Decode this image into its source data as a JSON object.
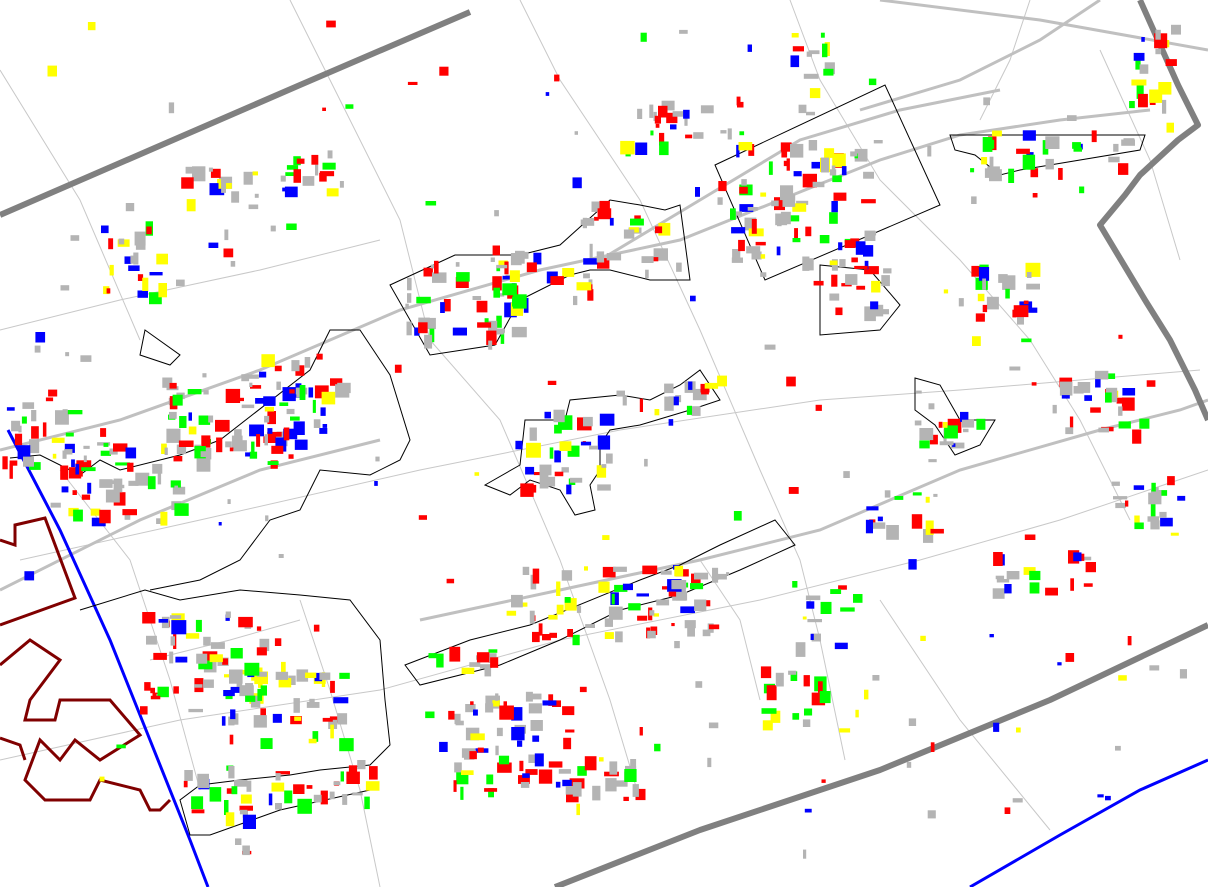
{
  "map": {
    "legend_colors": {
      "red": "#ff0000",
      "green": "#00ff00",
      "yellow": "#ffff00",
      "blue": "#0000ff",
      "gray": "#b4b4b4"
    },
    "boundary_colors": {
      "thick_border": "#808080",
      "blue_line": "#0000ff",
      "maroon_line": "#800000",
      "district_outline": "#000000",
      "road": "#c8c8c8"
    }
  }
}
